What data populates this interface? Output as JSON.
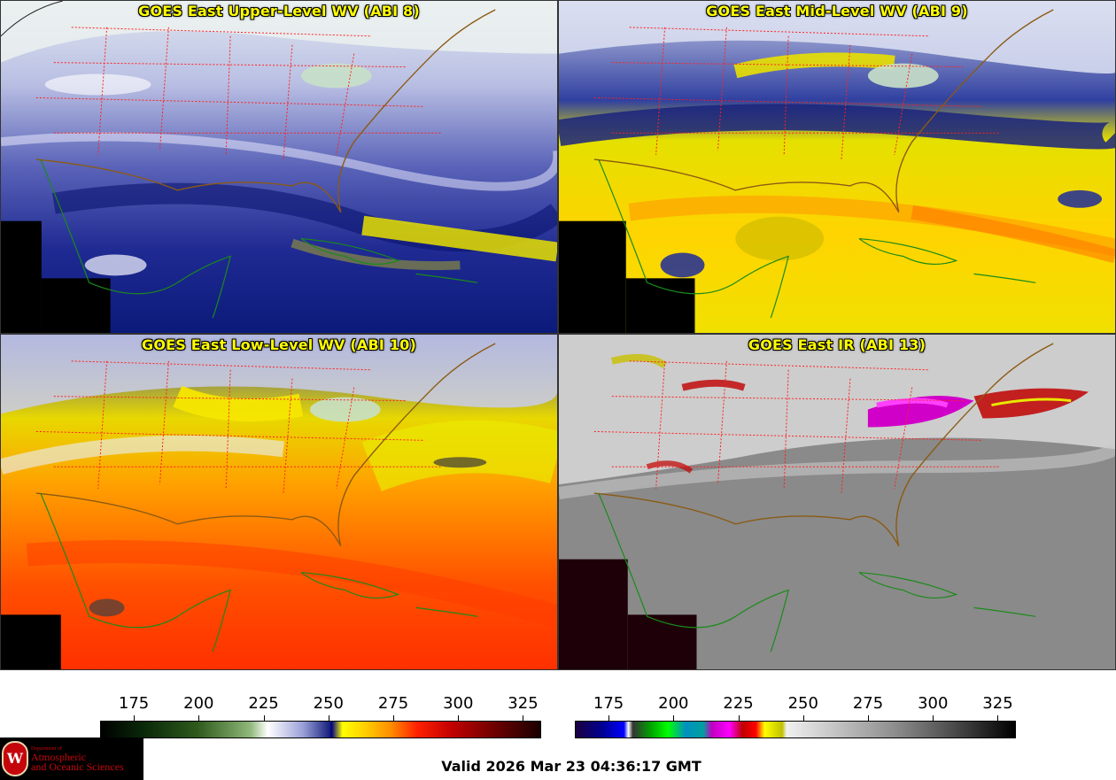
{
  "panels": [
    {
      "title": "GOES East Upper-Level WV (ABI 8)",
      "palette": "wv"
    },
    {
      "title": "GOES East Mid-Level WV (ABI 9)",
      "palette": "wv"
    },
    {
      "title": "GOES East Low-Level WV (ABI 10)",
      "palette": "wv"
    },
    {
      "title": "GOES East IR (ABI 13)",
      "palette": "ir"
    }
  ],
  "colorbars": {
    "wv": {
      "ticks": [
        "175",
        "200",
        "225",
        "250",
        "275",
        "300",
        "325"
      ],
      "range": [
        162,
        332
      ]
    },
    "ir": {
      "ticks": [
        "175",
        "200",
        "225",
        "250",
        "275",
        "300",
        "325"
      ],
      "range": [
        162,
        332
      ]
    }
  },
  "logo": {
    "line1": "Department of",
    "line2": "Atmospheric",
    "line3": "and Oceanic Sciences",
    "seal_letter": "W"
  },
  "valid_time": "Valid 2026 Mar 23 04:36:17 GMT",
  "colors": {
    "title": "#ffff00",
    "state_borders": "#ff2020",
    "coastlines_land": "#1a8a1a",
    "coastlines_us": "#8b5a14"
  }
}
